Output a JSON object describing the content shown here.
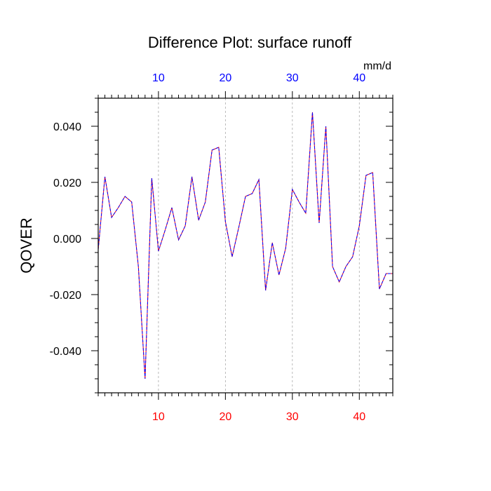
{
  "chart_data": {
    "type": "line",
    "title": "Difference Plot: surface runoff",
    "ylabel": "QOVER",
    "units_label": "mm/d",
    "xlim": [
      1,
      45
    ],
    "ylim": [
      -0.055,
      0.05
    ],
    "x_ticks": [
      10,
      20,
      30,
      40
    ],
    "x_tick_labels": [
      "10",
      "20",
      "30",
      "40"
    ],
    "y_ticks": [
      -0.04,
      -0.02,
      0.0,
      0.02,
      0.04
    ],
    "y_tick_labels": [
      "-0.040",
      "-0.020",
      "0.000",
      "0.020",
      "0.040"
    ],
    "x_grid": true,
    "line_style": "dashed",
    "colors": {
      "series_primary": "#ff0000",
      "series_overlay": "#0000ff",
      "top_tick_labels": "#0000ff",
      "bottom_tick_labels": "#ff0000",
      "left_tick_labels": "#000000",
      "grid": "#aaaaaa"
    },
    "x": [
      1,
      2,
      3,
      4,
      5,
      6,
      7,
      8,
      9,
      10,
      11,
      12,
      13,
      14,
      15,
      16,
      17,
      18,
      19,
      20,
      21,
      22,
      23,
      24,
      25,
      26,
      27,
      28,
      29,
      30,
      31,
      32,
      33,
      34,
      35,
      36,
      37,
      38,
      39,
      40,
      41,
      42,
      43,
      44,
      45
    ],
    "values": [
      -0.004,
      0.022,
      0.0075,
      0.011,
      0.015,
      0.013,
      -0.01,
      -0.05,
      0.0215,
      -0.0045,
      0.003,
      0.011,
      -0.0005,
      0.0045,
      0.022,
      0.0065,
      0.013,
      0.0315,
      0.0325,
      0.006,
      -0.0065,
      0.004,
      0.015,
      0.016,
      0.021,
      -0.0185,
      -0.0015,
      -0.013,
      -0.0035,
      0.0175,
      0.013,
      0.009,
      0.045,
      0.0055,
      0.04,
      -0.01,
      -0.0155,
      -0.01,
      -0.0065,
      0.0045,
      0.0225,
      0.0235,
      -0.018,
      -0.0125,
      -0.0125
    ]
  }
}
